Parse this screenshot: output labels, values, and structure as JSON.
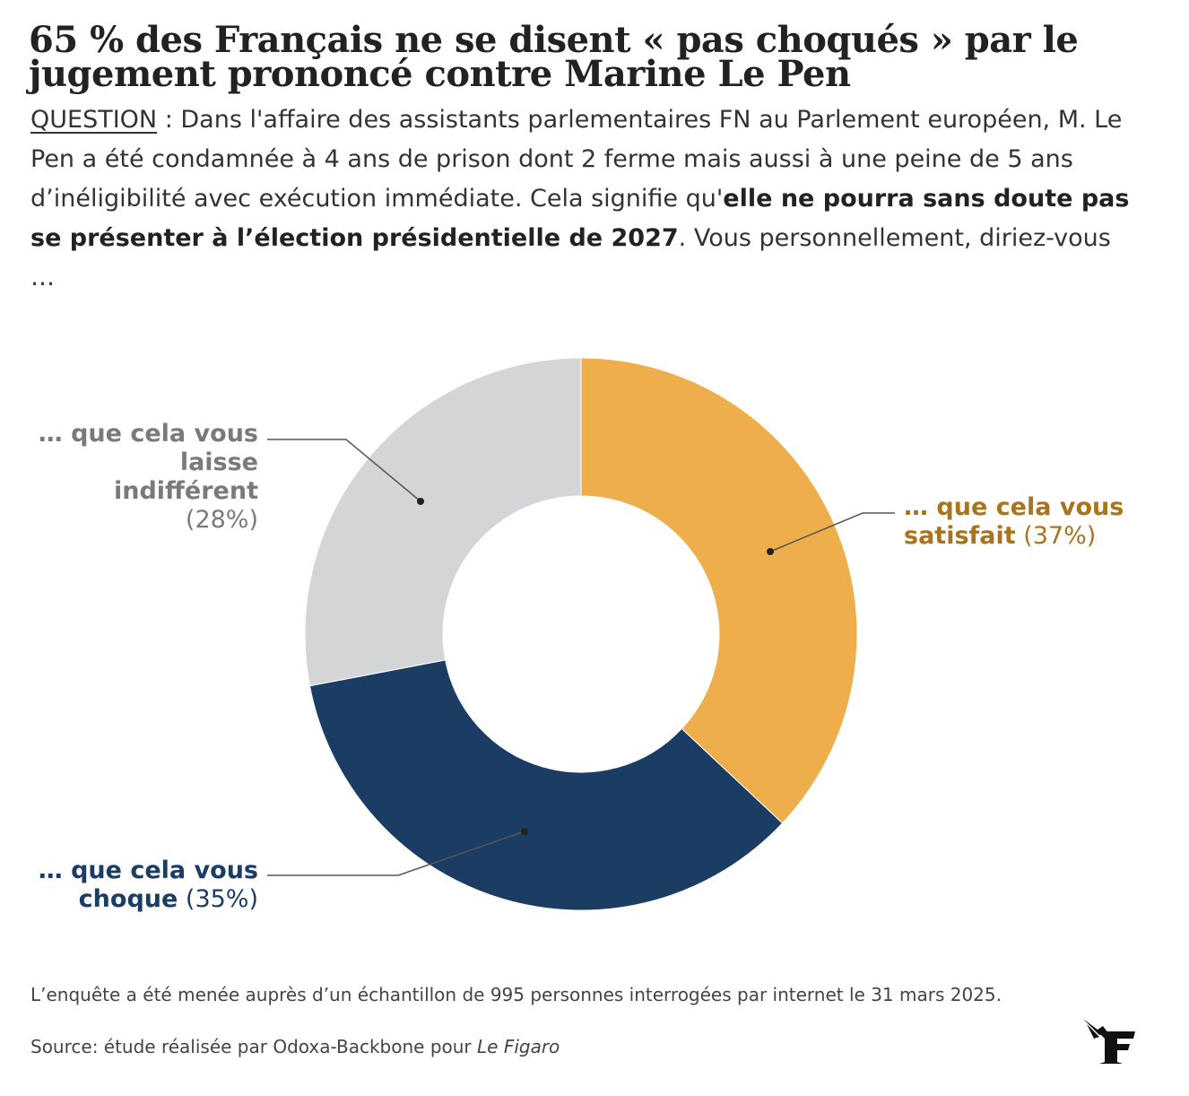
{
  "title": "65 % des Français ne se disent « pas choqués » par le jugement prononcé contre Marine Le Pen",
  "question": {
    "label": "QUESTION",
    "text_part1": " : Dans l'affaire des assistants parlementaires FN au Parlement européen, M. Le Pen a été condamnée à 4 ans de prison dont 2 ferme mais aussi à une peine de 5 ans d’inéligibilité avec exécution immédiate. Cela signifie qu'",
    "text_bold": "elle ne pourra sans doute pas se présenter à l’élection présidentielle de 2027",
    "text_part2": ". Vous personnellement, diriez-vous …"
  },
  "chart_data": {
    "type": "pie",
    "donut": true,
    "start_angle_deg": 0,
    "direction": "clockwise",
    "slices": [
      {
        "name": "… que cela vous satisfait",
        "value": 37,
        "value_label": "(37%)",
        "color": "#eeae4c",
        "label_color": "#a8741c"
      },
      {
        "name": "… que cela vous choque",
        "value": 35,
        "value_label": "(35%)",
        "color": "#1b3d63",
        "label_color": "#1b3d63"
      },
      {
        "name": "… que cela vous laisse indifférent",
        "value": 28,
        "value_label": "(28%)",
        "color": "#d4d5d7",
        "label_color": "#7a7a7a"
      }
    ]
  },
  "labels": {
    "indiff_line1": "… que cela vous",
    "indiff_line2": "laisse",
    "indiff_line3": "indifférent",
    "indiff_pct": "(28%)",
    "satisf_line1": "… que cela vous",
    "satisf_line2": "satisfait",
    "satisf_pct": "(37%)",
    "choque_line1": "… que cela vous",
    "choque_line2": "choque",
    "choque_pct": "(35%)"
  },
  "footnote": "L’enquête a été menée auprès d’un échantillon de 995 personnes interrogées par internet le 31 mars 2025.",
  "source": {
    "prefix": "Source: étude réalisée par Odoxa-Backbone pour ",
    "publication": "Le Figaro"
  },
  "logo": {
    "icon": "le-figaro-logo-icon"
  }
}
